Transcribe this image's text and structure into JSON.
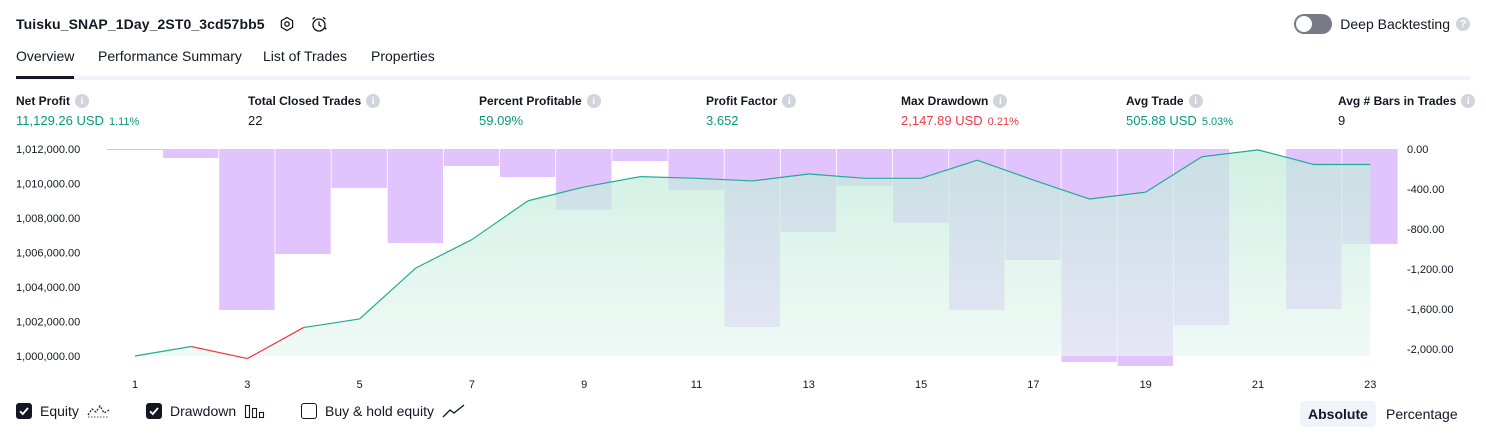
{
  "header": {
    "strategy_name": "Tuisku_SNAP_1Day_2ST0_3cd57bb5",
    "deep_backtesting_label": "Deep Backtesting",
    "deep_backtesting_on": false
  },
  "tabs": [
    {
      "label": "Overview",
      "active": true
    },
    {
      "label": "Performance Summary",
      "active": false
    },
    {
      "label": "List of Trades",
      "active": false
    },
    {
      "label": "Properties",
      "active": false
    }
  ],
  "metrics": [
    {
      "label": "Net Profit",
      "value": "11,129.26 USD",
      "pct": "1.11%",
      "color": "green"
    },
    {
      "label": "Total Closed Trades",
      "value": "22",
      "pct": "",
      "color": "dark"
    },
    {
      "label": "Percent Profitable",
      "value": "59.09%",
      "pct": "",
      "color": "green"
    },
    {
      "label": "Profit Factor",
      "value": "3.652",
      "pct": "",
      "color": "green"
    },
    {
      "label": "Max Drawdown",
      "value": "2,147.89 USD",
      "pct": "0.21%",
      "color": "red"
    },
    {
      "label": "Avg Trade",
      "value": "505.88 USD",
      "pct": "5.03%",
      "color": "green"
    },
    {
      "label": "Avg # Bars in Trades",
      "value": "9",
      "pct": "",
      "color": "dark"
    }
  ],
  "legend": {
    "equity_label": "Equity",
    "drawdown_label": "Drawdown",
    "buyhold_label": "Buy & hold equity",
    "equity_checked": true,
    "drawdown_checked": true,
    "buyhold_checked": false
  },
  "mode": {
    "absolute_label": "Absolute",
    "percentage_label": "Percentage",
    "selected": "Absolute"
  },
  "colors": {
    "equity_line": "#22ab94",
    "equity_loss_line": "#f23645",
    "equity_fill": "#c8eee4",
    "drawdown_bar": "#dcb8fd",
    "text": "#131722"
  },
  "chart_data": {
    "type": "area",
    "x": [
      1,
      2,
      3,
      4,
      5,
      6,
      7,
      8,
      9,
      10,
      11,
      12,
      13,
      14,
      15,
      16,
      17,
      18,
      19,
      20,
      21,
      22,
      23
    ],
    "x_tick_labels": [
      "1",
      "3",
      "5",
      "7",
      "9",
      "11",
      "13",
      "15",
      "17",
      "19",
      "21",
      "23"
    ],
    "series": [
      {
        "name": "Equity",
        "axis": "left",
        "values": [
          1000000,
          1000550,
          999850,
          1001650,
          1002150,
          1005100,
          1006750,
          1009000,
          1009800,
          1010400,
          1010300,
          1010150,
          1010550,
          1010300,
          1010300,
          1011350,
          1010200,
          1009100,
          1009500,
          1011550,
          1011950,
          1011100,
          1011100
        ]
      },
      {
        "name": "Drawdown",
        "axis": "right",
        "type": "bar",
        "values": [
          0,
          -90,
          -1610,
          -1050,
          -390,
          -940,
          -170,
          -280,
          -610,
          -120,
          -410,
          -1780,
          -830,
          -370,
          -740,
          -1610,
          -1110,
          -2130,
          -2170,
          -1760,
          0,
          -1600,
          -950
        ]
      }
    ],
    "left_axis": {
      "ticks": [
        "1,000,000.00",
        "1,002,000.00",
        "1,004,000.00",
        "1,006,000.00",
        "1,008,000.00",
        "1,010,000.00",
        "1,012,000.00"
      ],
      "range": [
        1000000,
        1012000
      ]
    },
    "right_axis": {
      "ticks": [
        "0.00",
        "-400.00",
        "-800.00",
        "-1,200.00",
        "-1,600.00",
        "-2,000.00"
      ],
      "range": [
        -2000,
        0
      ]
    },
    "grid": false
  }
}
